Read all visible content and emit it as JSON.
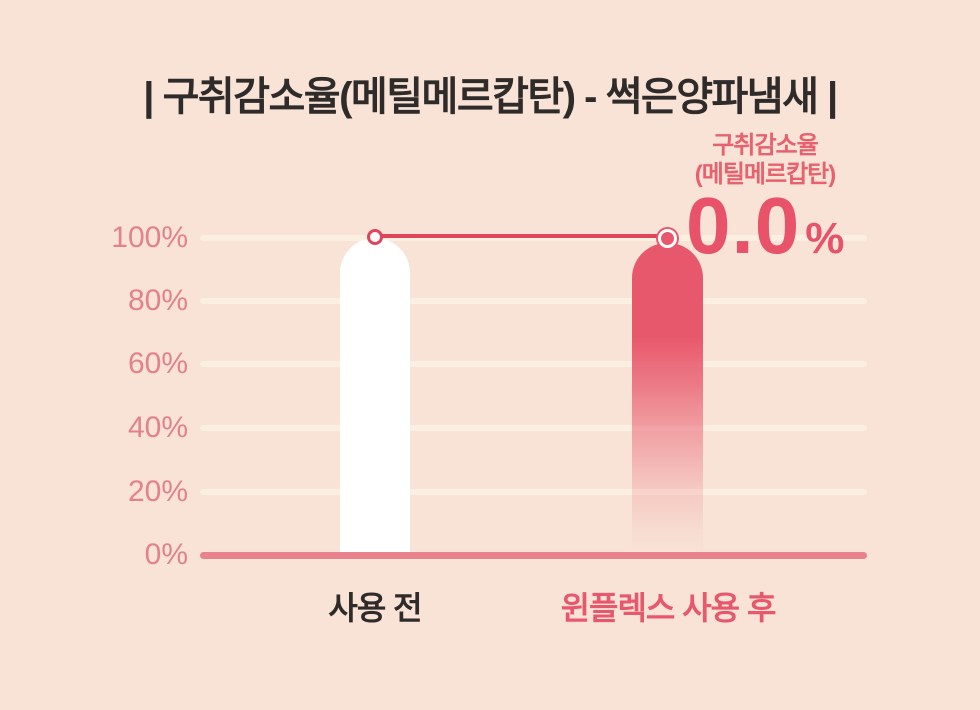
{
  "title": "| 구취감소율(메틸메르캅탄) - 썩은양파냄새 |",
  "annotation": {
    "line1": "구취감소율",
    "line2": "(메틸메르캅탄)",
    "value": "0.0",
    "unit": "%"
  },
  "chart_data": {
    "type": "bar",
    "title": "구취감소율(메틸메르캅탄) - 썩은양파냄새",
    "categories": [
      "사용 전",
      "윈플렉스 사용 후"
    ],
    "values": [
      100,
      100
    ],
    "ytick_labels": [
      "100%",
      "80%",
      "60%",
      "40%",
      "20%",
      "0%"
    ],
    "ytick_values": [
      100,
      80,
      60,
      40,
      20,
      0
    ],
    "ylim": [
      0,
      100
    ],
    "xlabel": "",
    "ylabel": "",
    "grid": true,
    "legend": "none",
    "connector_line": {
      "from": "사용 전",
      "to": "윈플렉스 사용 후",
      "at_percent": 100
    },
    "annotation": {
      "target": "윈플렉스 사용 후",
      "text": "구취감소율 (메틸메르캅탄) 0.0%"
    }
  },
  "colors": {
    "background": "#f8e3d6",
    "title_text": "#2e2b2a",
    "axis_label": "#e2838c",
    "gridline": "#fbefe2",
    "baseline": "#e8828d",
    "bar_before": "#ffffff",
    "bar_after": "#e8586c",
    "connector_line": "#df465a",
    "annotation_text": "#e8616e",
    "big_value": "#e8536a",
    "category_before": "#2f2b2a",
    "category_after": "#e8586c"
  }
}
